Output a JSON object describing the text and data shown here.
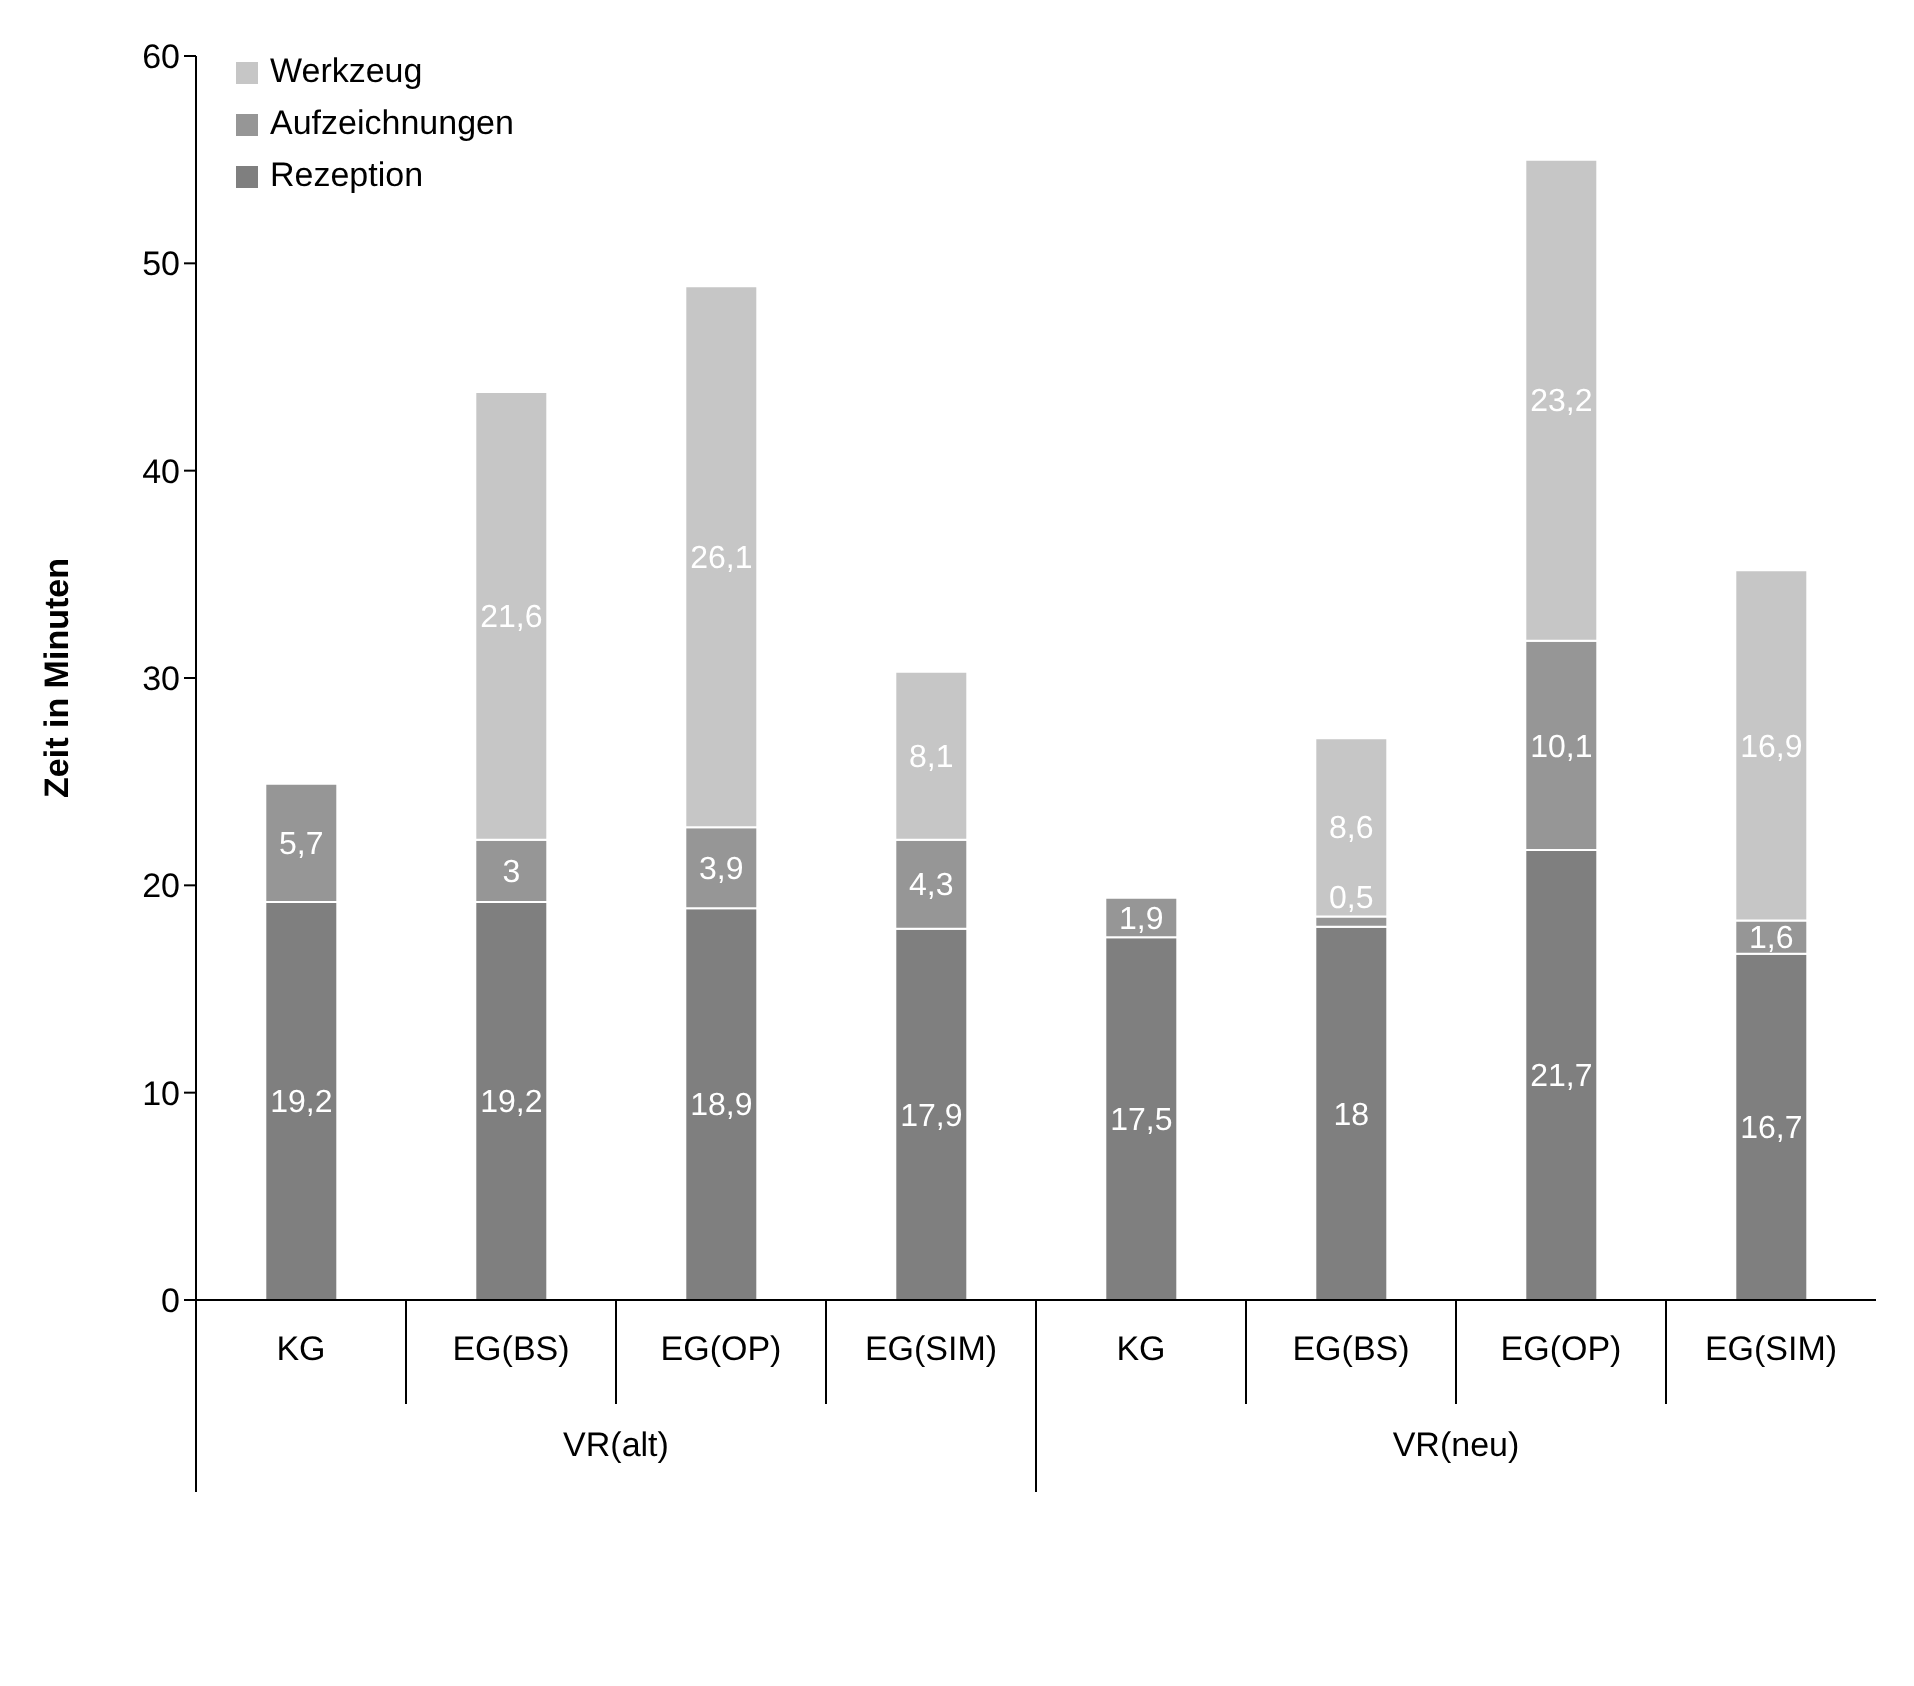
{
  "chart_data": {
    "type": "bar",
    "stacked": true,
    "ylabel": "Zeit in Minuten",
    "categories": [
      "KG",
      "EG(BS)",
      "EG(OP)",
      "EG(SIM)",
      "KG",
      "EG(BS)",
      "EG(OP)",
      "EG(SIM)"
    ],
    "annotations": [
      "VR(alt)",
      "VR(neu)"
    ],
    "series": [
      {
        "name": "Rezeption",
        "color": "#7f7f7f",
        "values": [
          19.2,
          19.2,
          18.9,
          17.9,
          17.5,
          18,
          21.7,
          16.7
        ],
        "value_labels": [
          "19,2",
          "19,2",
          "18,9",
          "17,9",
          "17,5",
          "18",
          "21,7",
          "16,7"
        ]
      },
      {
        "name": "Aufzeichnungen",
        "color": "#969696",
        "values": [
          5.7,
          3,
          3.9,
          4.3,
          1.9,
          0.5,
          10.1,
          1.6
        ],
        "value_labels": [
          "5,7",
          "3",
          "3,9",
          "4,3",
          "1,9",
          "0,5",
          "10,1",
          "1,6"
        ]
      },
      {
        "name": "Werkzeug",
        "color": "#c6c6c6",
        "values": [
          null,
          21.6,
          26.1,
          8.1,
          null,
          8.6,
          23.2,
          16.9
        ],
        "value_labels": [
          null,
          "21,6",
          "26,1",
          "8,1",
          null,
          "8,6",
          "23,2",
          "16,9"
        ]
      }
    ],
    "ylim": [
      0,
      60
    ],
    "yticks": [
      0,
      10,
      20,
      30,
      40,
      50,
      60
    ],
    "grid": false,
    "legend": "top left"
  }
}
